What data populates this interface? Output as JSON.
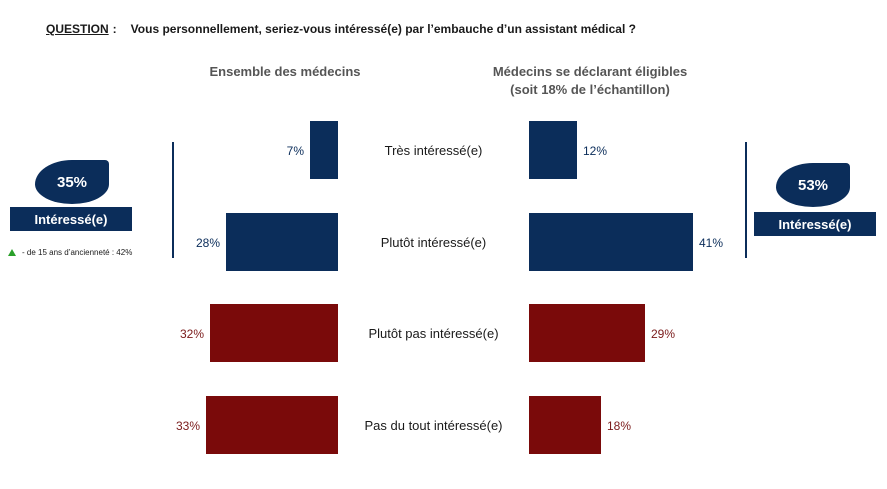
{
  "question": {
    "label": "QUESTION",
    "separator": ":",
    "text": "Vous personnellement, seriez-vous intéressé(e) par l’embauche d’un assistant médical ?"
  },
  "groups": {
    "left_title": "Ensemble des médecins",
    "right_title_line1": "Médecins se déclarant éligibles",
    "right_title_line2": "(soit 18% de l’échantillon)"
  },
  "badges": {
    "left": {
      "value": "35%",
      "label": "Intéressé(e)"
    },
    "right": {
      "value": "53%",
      "label": "Intéressé(e)"
    }
  },
  "note": {
    "text": "- de 15 ans d’ancienneté : 42%",
    "icon": "up-triangle-icon",
    "color": "#2aa02a"
  },
  "colors": {
    "positive": "#0b2d5a",
    "negative": "#7a0a0a",
    "negative_text": "#7a1a1a",
    "label_text": "#1a1a1a"
  },
  "chart_data": {
    "type": "bar",
    "categories": [
      "Très intéressé(e)",
      "Plutôt intéressé(e)",
      "Plutôt pas intéressé(e)",
      "Pas du tout intéressé(e)"
    ],
    "series": [
      {
        "name": "Ensemble des médecins",
        "values": [
          7,
          28,
          32,
          33
        ],
        "labels": [
          "7%",
          "28%",
          "32%",
          "33%"
        ]
      },
      {
        "name": "Médecins se déclarant éligibles",
        "values": [
          12,
          41,
          29,
          18
        ],
        "labels": [
          "12%",
          "41%",
          "29%",
          "18%"
        ]
      }
    ],
    "polarity": [
      "positive",
      "positive",
      "negative",
      "negative"
    ]
  }
}
